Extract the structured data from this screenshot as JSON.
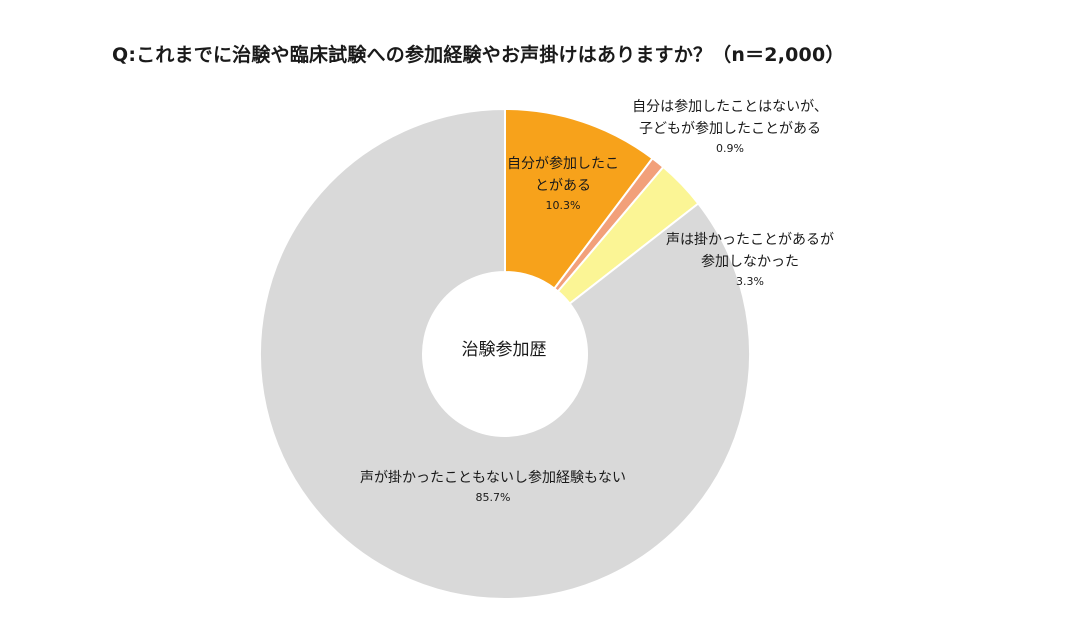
{
  "chart_data": {
    "type": "pie",
    "title": "Q:これまでに治験や臨床試験への参加経験やお声掛けはありますか？（n＝2,000）",
    "center_label": "治験参加歴",
    "slices": [
      {
        "label_lines": [
          "自分が参加したこ",
          "とがある"
        ],
        "value": 10.3,
        "value_label": "10.3%",
        "color": "#F7A21B"
      },
      {
        "label_lines": [
          "自分は参加したことはないが、",
          "子どもが参加したことがある"
        ],
        "value": 0.9,
        "value_label": "0.9%",
        "color": "#F2A07A"
      },
      {
        "label_lines": [
          "声は掛かったことがあるが",
          "参加しなかった"
        ],
        "value": 3.3,
        "value_label": "3.3%",
        "color": "#FBF595"
      },
      {
        "label_lines": [
          "声が掛かったこともないし参加経験もない"
        ],
        "value": 85.7,
        "value_label": "85.7%",
        "color": "#D9D9D9"
      }
    ]
  }
}
